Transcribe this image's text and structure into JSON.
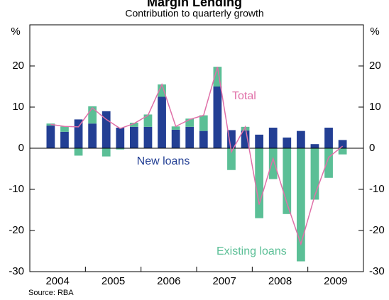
{
  "chart_data": {
    "type": "bar",
    "title": "Margin Lending",
    "subtitle": "Contribution to quarterly growth",
    "y_label": "%",
    "y2_label": "%",
    "source": "Source: RBA",
    "years": [
      "2004",
      "2005",
      "2006",
      "2007",
      "2008",
      "2009"
    ],
    "categories": [
      null,
      null,
      null,
      null,
      null,
      null,
      null,
      null,
      null,
      null,
      null,
      null,
      null,
      null,
      null,
      null,
      null,
      null,
      null,
      null,
      null,
      null,
      null,
      null
    ],
    "series": [
      {
        "name": "New loans",
        "color": "#233f94",
        "type": "bar",
        "values": [
          null,
          5.5,
          4,
          7,
          6,
          9,
          5,
          5.2,
          5.2,
          12.5,
          4.5,
          5.2,
          4.2,
          15,
          4.4,
          4.3,
          3.3,
          5,
          2.6,
          4.2,
          1,
          5,
          2,
          null
        ]
      },
      {
        "name": "Existing loans",
        "color": "#5bbf96",
        "type": "bar",
        "values": [
          null,
          0.5,
          1.3,
          -1.8,
          4.2,
          -2,
          -0.3,
          1,
          3,
          3,
          0.8,
          2,
          3.8,
          4.8,
          -5.3,
          0.9,
          -17,
          -7.5,
          -16,
          -27.5,
          -12.5,
          -7.2,
          -1.5,
          null
        ]
      },
      {
        "name": "Total",
        "color": "#e070a8",
        "type": "line",
        "values": [
          null,
          5.8,
          5.3,
          5.2,
          9.8,
          7,
          4.8,
          6,
          8,
          15.5,
          5.3,
          7,
          8,
          19.8,
          -0.9,
          5.2,
          -13.7,
          -2.5,
          -13.4,
          -23.3,
          -11.5,
          -2.2,
          0.5,
          null
        ]
      }
    ],
    "ylim": [
      -30,
      30
    ],
    "yticks": [
      -30,
      -20,
      -10,
      0,
      10,
      20
    ],
    "y2lim": [
      -30,
      30
    ],
    "y2ticks": [
      -30,
      -20,
      -10,
      0,
      10,
      20
    ]
  }
}
